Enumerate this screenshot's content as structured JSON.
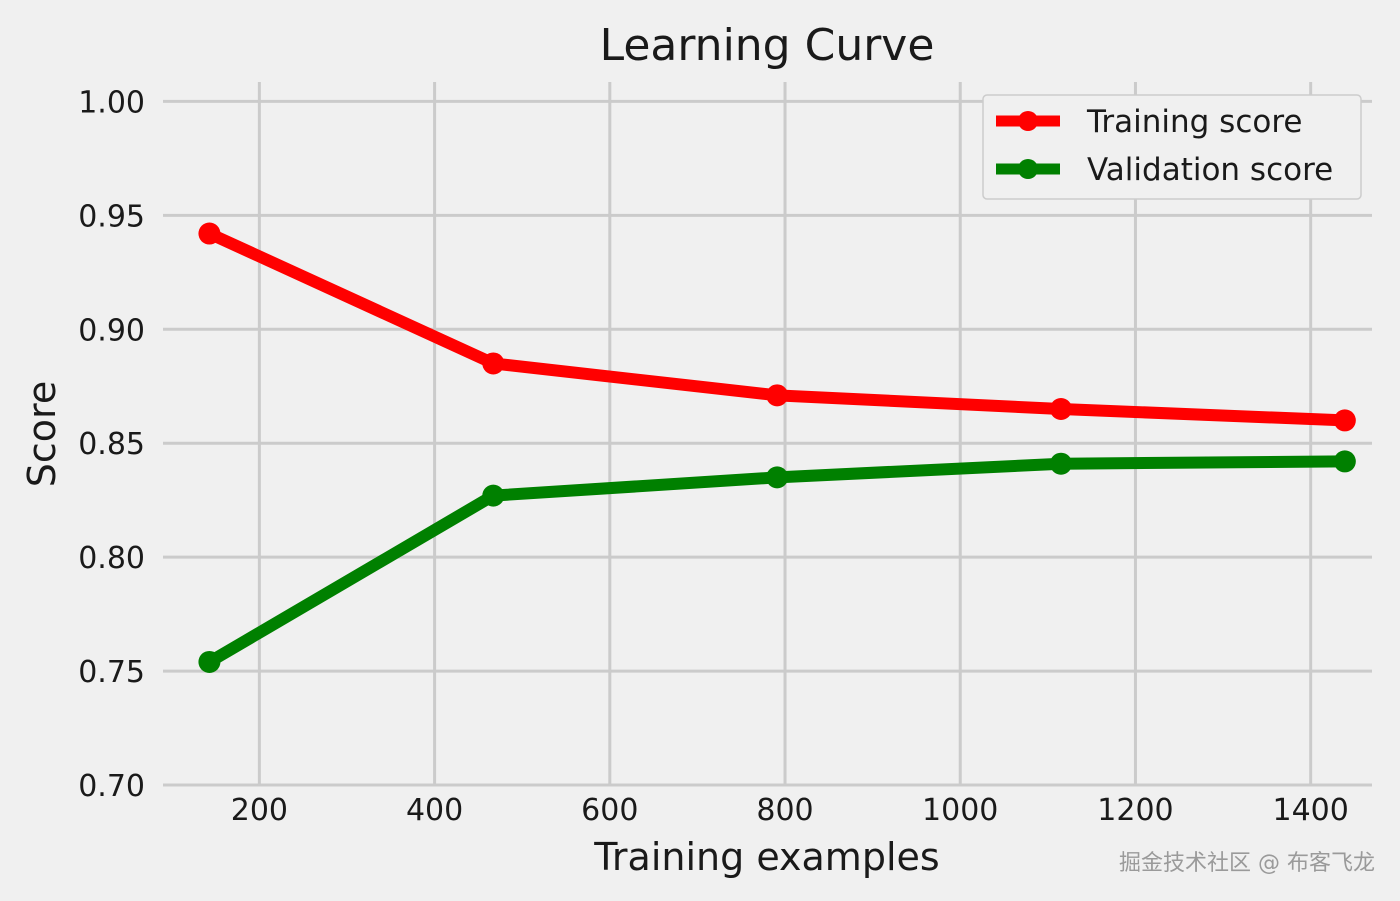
{
  "chart_data": {
    "type": "line",
    "title": "Learning Curve",
    "xlabel": "Training examples",
    "ylabel": "Score",
    "xlim": [
      90,
      1470
    ],
    "ylim": [
      0.7,
      1.005
    ],
    "x_ticks": [
      200,
      400,
      600,
      800,
      1000,
      1200,
      1400
    ],
    "y_ticks": [
      0.7,
      0.75,
      0.8,
      0.85,
      0.9,
      0.95,
      1.0
    ],
    "x_tick_labels": [
      "200",
      "400",
      "600",
      "800",
      "1000",
      "1200",
      "1400"
    ],
    "y_tick_labels": [
      "0.70",
      "0.75",
      "0.80",
      "0.85",
      "0.90",
      "0.95",
      "1.00"
    ],
    "grid": true,
    "legend_position": "top-right",
    "x": [
      143,
      467,
      791,
      1115,
      1439
    ],
    "series": [
      {
        "name": "Training score",
        "color": "#ff0000",
        "values": [
          0.942,
          0.885,
          0.871,
          0.865,
          0.86
        ]
      },
      {
        "name": "Validation score",
        "color": "#008000",
        "values": [
          0.754,
          0.827,
          0.835,
          0.841,
          0.842
        ]
      }
    ]
  },
  "watermark": "掘金技术社区 @ 布客飞龙"
}
